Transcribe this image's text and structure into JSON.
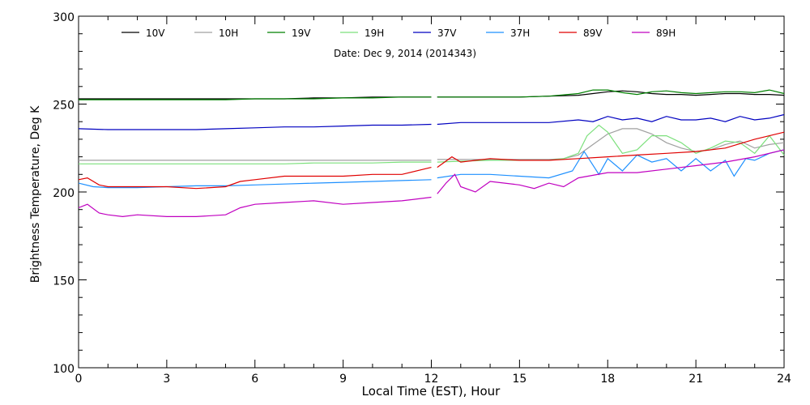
{
  "chart_data": {
    "type": "line",
    "title": "Date: Dec  9, 2014 (2014343)",
    "xlabel": "Local Time (EST), Hour",
    "ylabel": "Brightness Temperature, Deg  K",
    "xlim": [
      0,
      24
    ],
    "ylim": [
      100,
      300
    ],
    "xticks": [
      0,
      3,
      6,
      9,
      12,
      15,
      18,
      21,
      24
    ],
    "yticks": [
      100,
      150,
      200,
      250,
      300
    ],
    "grid": false,
    "legend_position": "top",
    "gap_hour": 12.1,
    "series": [
      {
        "name": "10V",
        "color": "#000000",
        "x": [
          0,
          1,
          2,
          3,
          4,
          5,
          6,
          7,
          8,
          9,
          10,
          11,
          12,
          12.2,
          13,
          14,
          15,
          16,
          17,
          17.5,
          18,
          18.5,
          19,
          19.5,
          20,
          20.5,
          21,
          21.5,
          22,
          22.5,
          23,
          23.5,
          24
        ],
        "y": [
          253,
          253,
          253,
          253,
          253,
          253,
          253,
          253,
          253.5,
          253.5,
          254,
          254,
          254,
          254,
          254,
          254,
          254,
          254.5,
          255,
          256,
          257,
          257.5,
          257,
          256,
          255.5,
          255.5,
          255,
          255.5,
          256,
          256,
          255.5,
          255.5,
          255
        ]
      },
      {
        "name": "10H",
        "color": "#a0a0a0",
        "x": [
          0,
          1,
          2,
          3,
          4,
          5,
          6,
          7,
          8,
          9,
          10,
          11,
          12,
          12.2,
          13,
          14,
          15,
          16,
          16.5,
          17,
          17.5,
          18,
          18.5,
          19,
          19.5,
          20,
          20.5,
          21,
          21.5,
          22,
          22.5,
          23,
          23.5,
          24
        ],
        "y": [
          218,
          218,
          218,
          218,
          218,
          218,
          218,
          218,
          218,
          218,
          218,
          218,
          218,
          218.5,
          218.5,
          218.5,
          218.5,
          218.5,
          219,
          221,
          227,
          233,
          236,
          236,
          233,
          228,
          225,
          223,
          224,
          227,
          229,
          225,
          227,
          228
        ]
      },
      {
        "name": "19V",
        "color": "#008000",
        "x": [
          0,
          1,
          2,
          3,
          4,
          5,
          6,
          7,
          8,
          9,
          10,
          11,
          12,
          12.2,
          13,
          14,
          15,
          16,
          17,
          17.5,
          18,
          18.5,
          19,
          19.5,
          20,
          20.5,
          21,
          21.5,
          22,
          22.5,
          23,
          23.5,
          24
        ],
        "y": [
          252.5,
          252.5,
          252.5,
          252.5,
          252.5,
          252.5,
          253,
          253,
          253,
          253.5,
          253.5,
          254,
          254,
          254,
          254,
          254,
          254,
          254.5,
          256,
          258,
          258,
          256.5,
          255.5,
          257,
          257.5,
          256.5,
          256,
          256.5,
          257,
          257,
          256.5,
          258,
          256
        ]
      },
      {
        "name": "19H",
        "color": "#7ce07c",
        "x": [
          0,
          1,
          2,
          3,
          4,
          5,
          6,
          7,
          8,
          9,
          10,
          11,
          12,
          12.2,
          13,
          14,
          15,
          16,
          16.5,
          17,
          17.3,
          17.7,
          18,
          18.5,
          19,
          19.5,
          20,
          20.5,
          21,
          21.5,
          22,
          22.5,
          23,
          23.5,
          24
        ],
        "y": [
          216,
          216,
          216,
          216,
          216,
          216,
          216,
          216,
          216.5,
          216.5,
          216.5,
          217,
          217,
          217,
          217.5,
          218,
          218,
          218,
          219,
          222,
          232,
          238,
          234,
          222,
          224,
          232,
          232,
          228,
          222,
          225,
          229,
          228,
          222,
          232,
          221
        ]
      },
      {
        "name": "37V",
        "color": "#0000c0",
        "x": [
          0,
          1,
          2,
          3,
          4,
          5,
          6,
          7,
          8,
          9,
          10,
          11,
          12,
          12.2,
          13,
          14,
          15,
          16,
          17,
          17.5,
          18,
          18.5,
          19,
          19.5,
          20,
          20.5,
          21,
          21.5,
          22,
          22.5,
          23,
          23.5,
          24
        ],
        "y": [
          236,
          235.5,
          235.5,
          235.5,
          235.5,
          236,
          236.5,
          237,
          237,
          237.5,
          238,
          238,
          238.5,
          238.5,
          239.5,
          239.5,
          239.5,
          239.5,
          241,
          240,
          243,
          241,
          242,
          240,
          243,
          241,
          241,
          242,
          240,
          243,
          241,
          242,
          244
        ]
      },
      {
        "name": "37H",
        "color": "#1e90ff",
        "x": [
          0,
          0.5,
          1,
          2,
          3,
          4,
          5,
          6,
          7,
          8,
          9,
          10,
          11,
          12,
          12.2,
          13,
          14,
          15,
          16,
          16.8,
          17.2,
          17.7,
          18,
          18.5,
          19,
          19.5,
          20,
          20.5,
          21,
          21.5,
          22,
          22.3,
          22.7,
          23,
          23.5,
          24
        ],
        "y": [
          205,
          203,
          202.5,
          202.5,
          203,
          203.5,
          203.5,
          204,
          204.5,
          205,
          205.5,
          206,
          206.5,
          207,
          208,
          210,
          210,
          209,
          208,
          212,
          223,
          210,
          219,
          212,
          221,
          217,
          219,
          212,
          219,
          212,
          218,
          209,
          219,
          218,
          222,
          224
        ]
      },
      {
        "name": "89V",
        "color": "#e00000",
        "x": [
          0,
          0.3,
          0.7,
          1,
          2,
          3,
          4,
          5,
          5.5,
          6,
          7,
          8,
          9,
          10,
          11,
          12,
          12.2,
          12.7,
          13,
          14,
          15,
          16,
          17,
          18,
          19,
          20,
          21,
          22,
          23,
          24
        ],
        "y": [
          207,
          208,
          204,
          203,
          203,
          203,
          202,
          203,
          206,
          207,
          209,
          209,
          209,
          210,
          210,
          214,
          214,
          220,
          217,
          219,
          218,
          218,
          219,
          220,
          221,
          222,
          223,
          225,
          230,
          234
        ]
      },
      {
        "name": "89H",
        "color": "#c000c0",
        "x": [
          0,
          0.3,
          0.7,
          1,
          1.5,
          2,
          3,
          4,
          5,
          5.5,
          6,
          7,
          8,
          9,
          10,
          11,
          12,
          12.2,
          12.5,
          12.8,
          13,
          13.5,
          14,
          15,
          15.5,
          16,
          16.5,
          17,
          18,
          19,
          20,
          21,
          22,
          23,
          24
        ],
        "y": [
          191,
          193,
          188,
          187,
          186,
          187,
          186,
          186,
          187,
          191,
          193,
          194,
          195,
          193,
          194,
          195,
          197,
          199,
          205,
          210,
          203,
          200,
          206,
          204,
          202,
          205,
          203,
          208,
          211,
          211,
          213,
          215,
          217,
          220,
          224
        ]
      }
    ]
  }
}
